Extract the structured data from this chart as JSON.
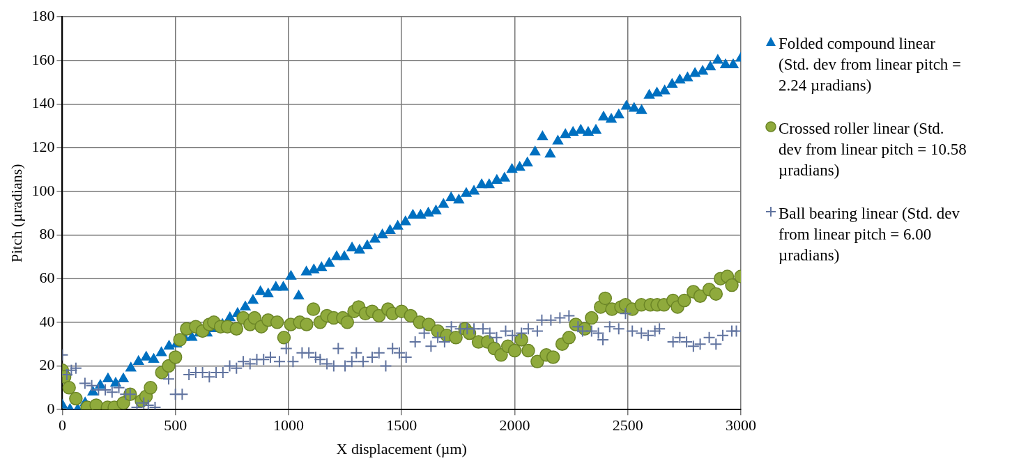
{
  "chart_data": {
    "type": "scatter",
    "xlabel": "X displacement (µm)",
    "ylabel": "Pitch (µradians)",
    "xlim": [
      0,
      3000
    ],
    "xticks": [
      0,
      500,
      1000,
      1500,
      2000,
      2500,
      3000
    ],
    "ylim": [
      0,
      180
    ],
    "yticks": [
      0,
      20,
      40,
      60,
      80,
      100,
      120,
      140,
      160,
      180
    ],
    "grid": true,
    "legend": "right",
    "series": [
      {
        "name": "Folded compound linear (Std. dev from linear pitch = 2.24 µradians)",
        "color": "#0070c0",
        "marker": "triangle",
        "x": [
          0,
          34,
          68,
          101,
          135,
          168,
          202,
          236,
          270,
          303,
          337,
          371,
          404,
          438,
          472,
          505,
          539,
          573,
          607,
          640,
          674,
          708,
          741,
          775,
          809,
          843,
          876,
          910,
          944,
          977,
          1011,
          1045,
          1079,
          1112,
          1146,
          1180,
          1213,
          1247,
          1281,
          1314,
          1348,
          1382,
          1415,
          1449,
          1483,
          1517,
          1550,
          1584,
          1618,
          1652,
          1685,
          1719,
          1753,
          1786,
          1820,
          1854,
          1887,
          1921,
          1955,
          1988,
          2022,
          2056,
          2090,
          2123,
          2157,
          2191,
          2224,
          2258,
          2292,
          2325,
          2359,
          2393,
          2427,
          2460,
          2494,
          2528,
          2561,
          2595,
          2629,
          2663,
          2696,
          2730,
          2764,
          2797,
          2831,
          2865,
          2898,
          2932,
          2966,
          3000
        ],
        "values": [
          2,
          0,
          0,
          3,
          8,
          11,
          14,
          12,
          14,
          19,
          22,
          24,
          23,
          26,
          29,
          30,
          33,
          33,
          35,
          35,
          37,
          39,
          42,
          44,
          47,
          50,
          54,
          53,
          56,
          56,
          61,
          52,
          63,
          64,
          65,
          67,
          70,
          70,
          74,
          73,
          75,
          78,
          80,
          82,
          84,
          86,
          89,
          89,
          90,
          91,
          94,
          97,
          96,
          99,
          100,
          103,
          103,
          105,
          106,
          110,
          111,
          113,
          118,
          125,
          117,
          123,
          126,
          127,
          128,
          127,
          128,
          134,
          133,
          135,
          139,
          138,
          137,
          144,
          145,
          146,
          149,
          151,
          152,
          154,
          155,
          157,
          160,
          158,
          158,
          161
        ]
      },
      {
        "name": "Crossed roller linear (Std. dev from linear pitch = 10.58 µradians)",
        "color": "#8faa3c",
        "marker": "circle",
        "x": [
          0,
          10,
          30,
          60,
          110,
          150,
          200,
          230,
          270,
          300,
          350,
          370,
          390,
          440,
          470,
          500,
          520,
          550,
          590,
          620,
          650,
          670,
          700,
          730,
          770,
          800,
          830,
          850,
          880,
          910,
          950,
          980,
          1010,
          1050,
          1080,
          1110,
          1140,
          1170,
          1200,
          1240,
          1260,
          1290,
          1310,
          1340,
          1370,
          1400,
          1440,
          1460,
          1500,
          1540,
          1580,
          1620,
          1660,
          1700,
          1740,
          1780,
          1800,
          1840,
          1880,
          1910,
          1940,
          1970,
          2000,
          2030,
          2060,
          2100,
          2140,
          2170,
          2210,
          2240,
          2270,
          2310,
          2340,
          2380,
          2400,
          2430,
          2470,
          2490,
          2520,
          2560,
          2600,
          2630,
          2660,
          2700,
          2720,
          2750,
          2790,
          2820,
          2860,
          2890,
          2910,
          2940,
          2960,
          3000
        ],
        "values": [
          18,
          15,
          10,
          5,
          1,
          2,
          1,
          1,
          3,
          7,
          4,
          6,
          10,
          17,
          20,
          24,
          32,
          37,
          38,
          36,
          39,
          40,
          38,
          38,
          37,
          42,
          39,
          42,
          38,
          41,
          40,
          33,
          39,
          40,
          39,
          46,
          40,
          43,
          42,
          42,
          40,
          45,
          47,
          44,
          45,
          43,
          46,
          44,
          45,
          43,
          40,
          39,
          36,
          34,
          33,
          37,
          35,
          31,
          31,
          28,
          25,
          29,
          27,
          32,
          27,
          22,
          25,
          24,
          30,
          33,
          39,
          37,
          42,
          47,
          51,
          46,
          47,
          48,
          46,
          48,
          48,
          48,
          48,
          50,
          47,
          50,
          54,
          52,
          55,
          53,
          60,
          61,
          57,
          61
        ]
      },
      {
        "name": "Ball bearing linear (Std. dev from linear pitch = 6.00 µradians)",
        "color": "#60739f",
        "marker": "cross",
        "x": [
          0,
          20,
          40,
          60,
          100,
          130,
          160,
          190,
          220,
          250,
          280,
          300,
          330,
          360,
          380,
          410,
          470,
          500,
          530,
          560,
          590,
          620,
          650,
          680,
          710,
          740,
          770,
          800,
          830,
          860,
          890,
          920,
          960,
          990,
          1020,
          1060,
          1090,
          1120,
          1140,
          1170,
          1200,
          1220,
          1250,
          1280,
          1300,
          1330,
          1370,
          1400,
          1430,
          1460,
          1490,
          1520,
          1560,
          1600,
          1630,
          1660,
          1690,
          1720,
          1760,
          1790,
          1820,
          1860,
          1890,
          1920,
          1960,
          1990,
          2030,
          2060,
          2100,
          2120,
          2160,
          2200,
          2240,
          2280,
          2300,
          2340,
          2370,
          2390,
          2420,
          2460,
          2490,
          2520,
          2560,
          2590,
          2620,
          2640,
          2700,
          2730,
          2760,
          2790,
          2820,
          2860,
          2890,
          2920,
          2960,
          2980
        ],
        "values": [
          25,
          16,
          18,
          19,
          12,
          11,
          9,
          9,
          8,
          10,
          7,
          7,
          1,
          3,
          2,
          1,
          14,
          7,
          7,
          16,
          17,
          17,
          15,
          17,
          17,
          20,
          19,
          22,
          21,
          23,
          23,
          24,
          22,
          28,
          22,
          26,
          26,
          24,
          23,
          21,
          20,
          28,
          20,
          22,
          26,
          22,
          24,
          26,
          20,
          28,
          26,
          24,
          31,
          35,
          29,
          33,
          31,
          38,
          37,
          37,
          37,
          37,
          35,
          33,
          36,
          34,
          35,
          37,
          36,
          41,
          41,
          42,
          43,
          38,
          36,
          36,
          35,
          32,
          38,
          37,
          44,
          36,
          35,
          34,
          36,
          37,
          31,
          33,
          31,
          29,
          30,
          33,
          30,
          34,
          36,
          36
        ]
      }
    ]
  }
}
